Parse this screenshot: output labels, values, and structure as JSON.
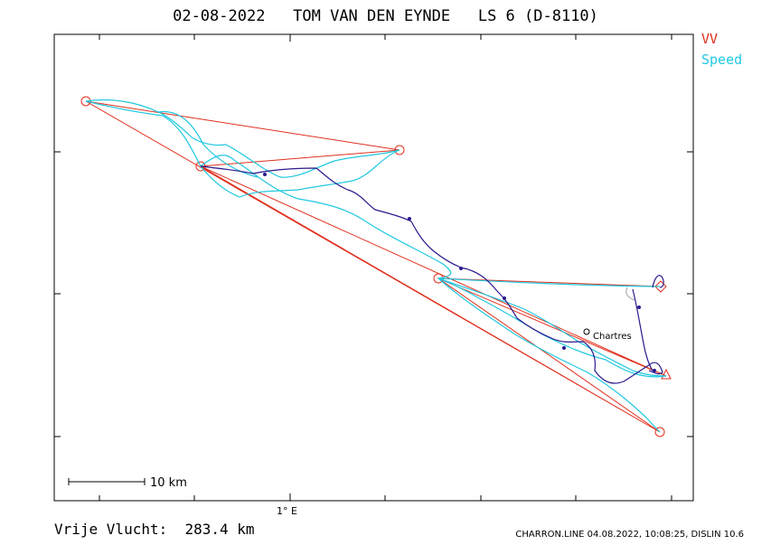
{
  "header": {
    "title": "02-08-2022   TOM VAN DEN EYNDE   LS 6 (D-8110)"
  },
  "legend": {
    "vv_label": "VV",
    "speed_label": "Speed",
    "vv_color": "#e0301e",
    "speed_color": "#20c8e0",
    "track_color": "#2a1a8c"
  },
  "map": {
    "x_tick_label": "1° E",
    "scale_bar_label": "10 km",
    "town_label": "Chartres"
  },
  "footer": {
    "distance_label": "Vrije Vlucht:  283.4 km",
    "credits": "CHARRON.LINE 04.08.2022, 10:08:25, DISLIN 10.6"
  }
}
